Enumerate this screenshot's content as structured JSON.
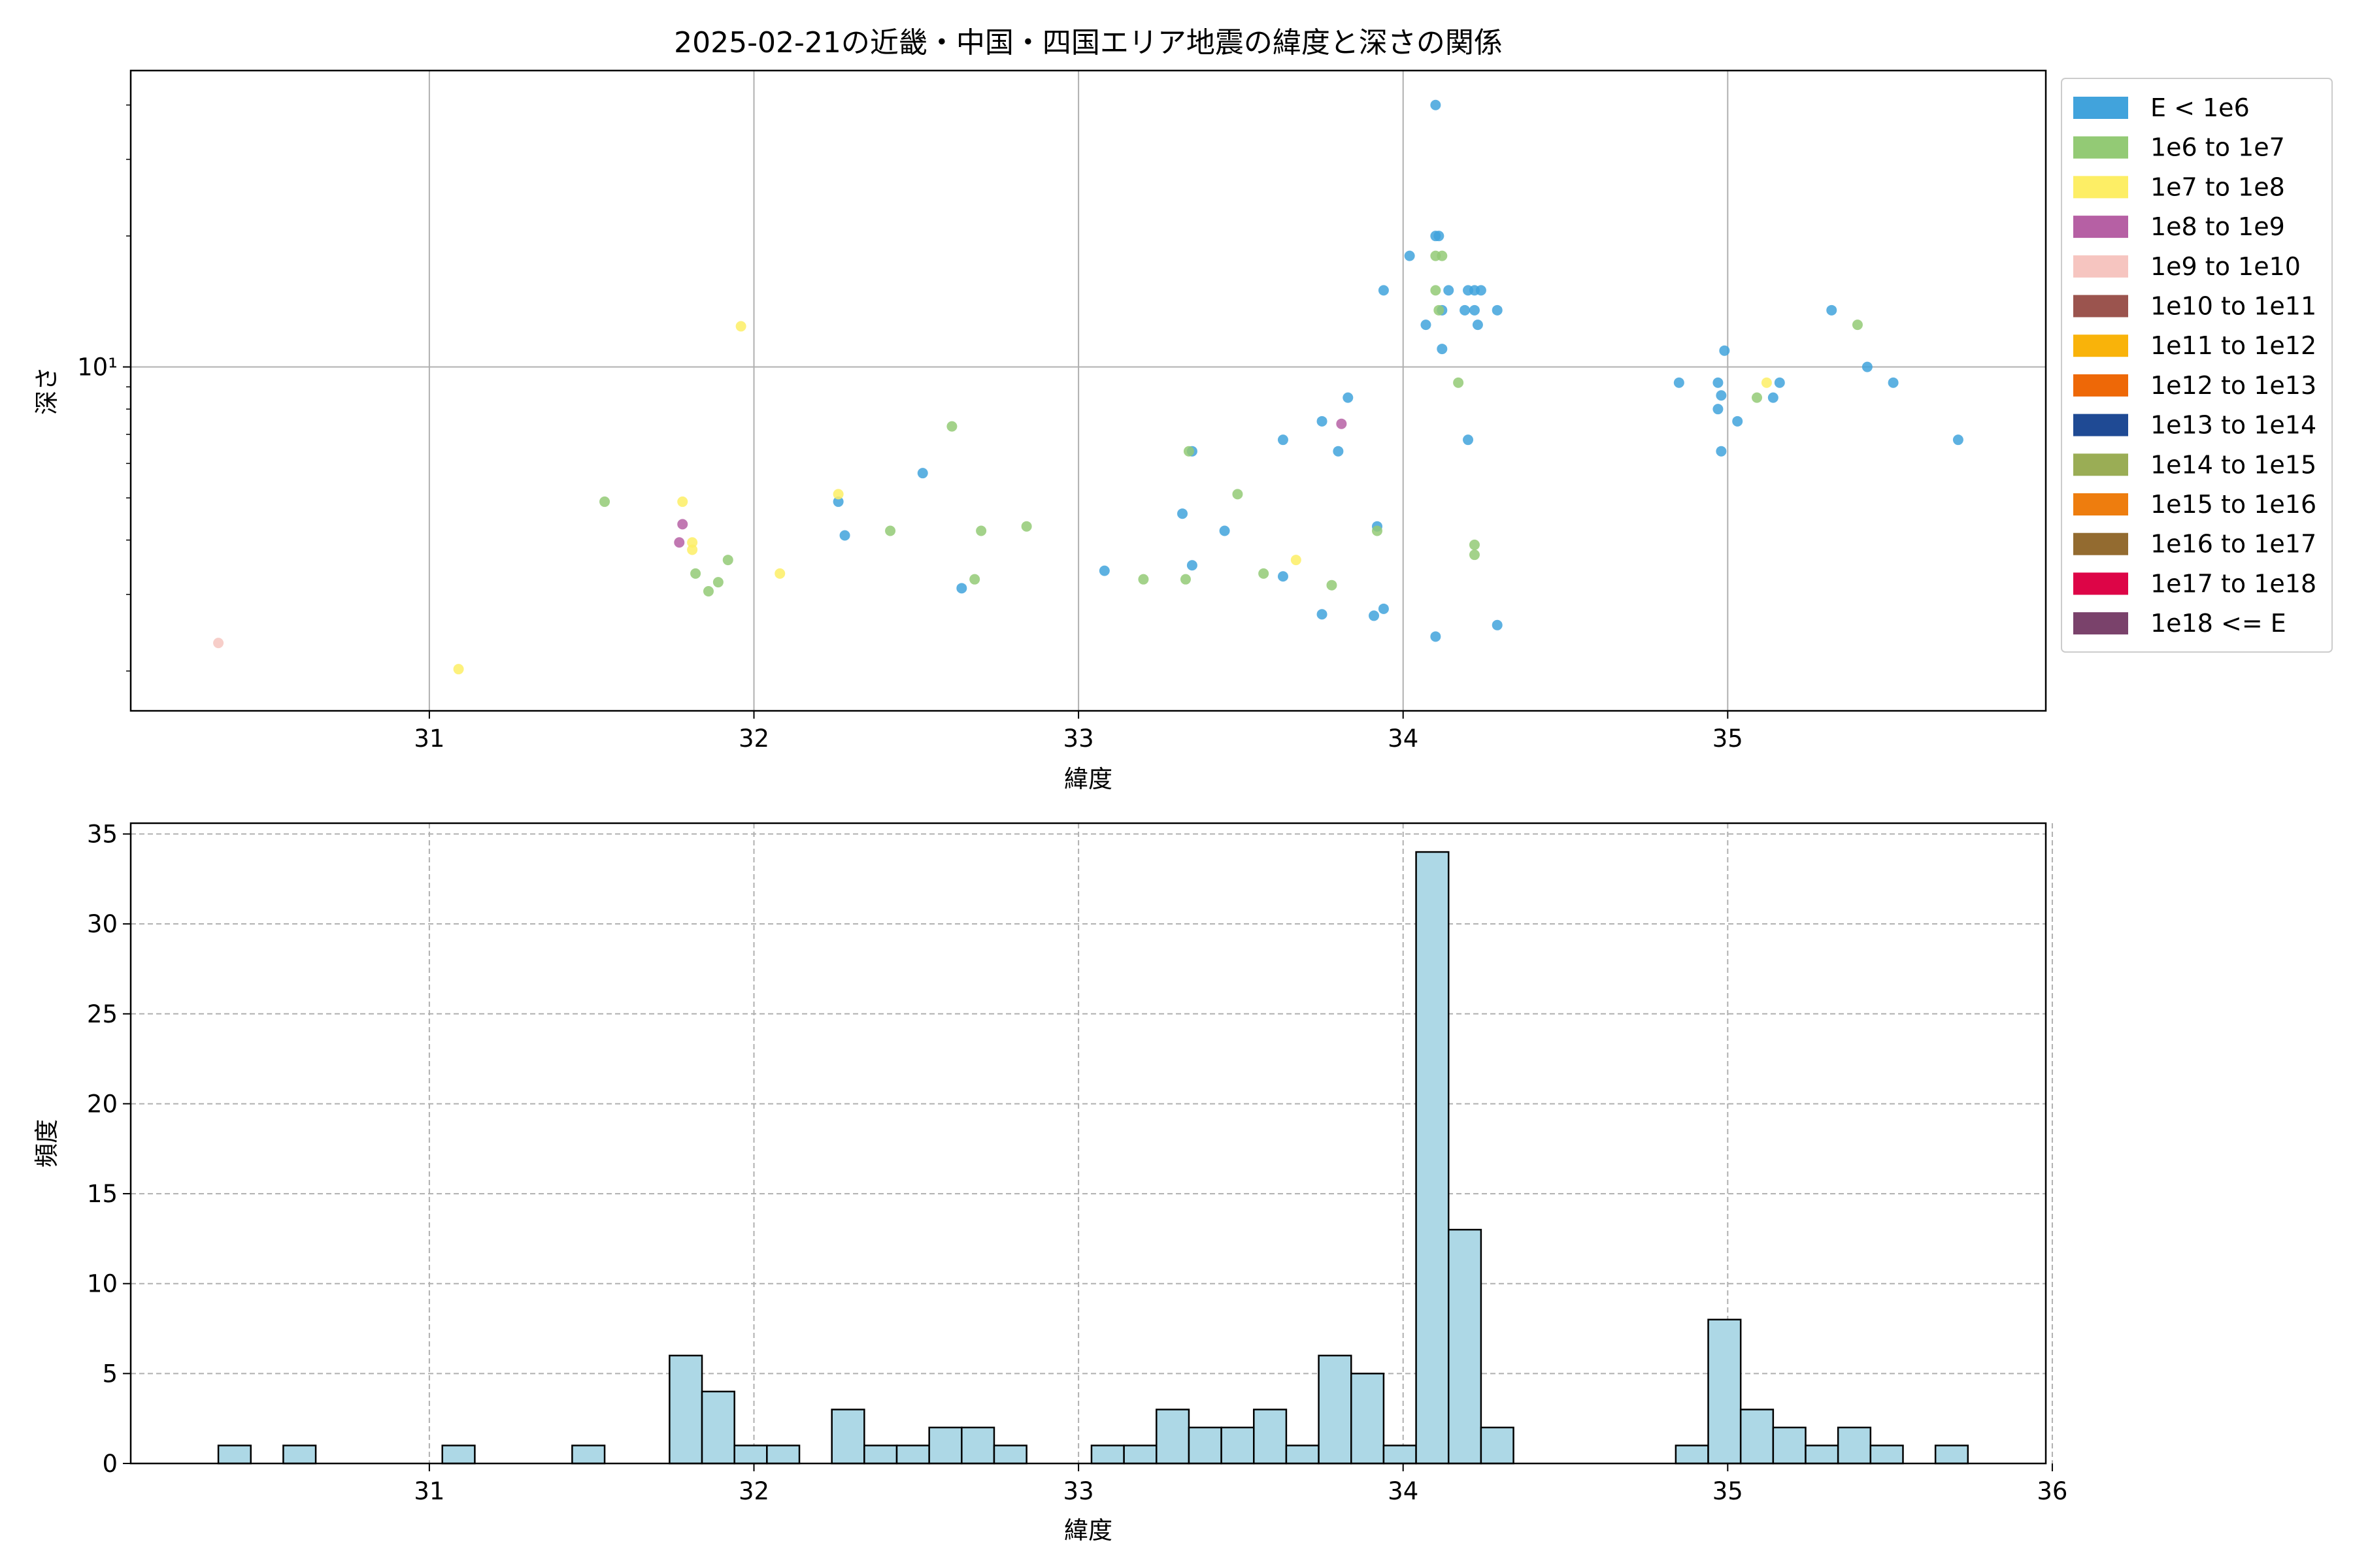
{
  "chart_data": [
    {
      "type": "scatter",
      "title": "2025-02-21の近畿・中国・四国エリア地震の緯度と深さの関係",
      "xlabel": "緯度",
      "ylabel": "深さ",
      "xlim": [
        30.08,
        35.98
      ],
      "ylim": [
        1.62,
        48
      ],
      "yscale": "log",
      "x_ticks": [
        31,
        32,
        33,
        34,
        35
      ],
      "x_tick_labels": [
        "31",
        "32",
        "33",
        "34",
        "35"
      ],
      "y_ticks": [
        10
      ],
      "y_tick_labels": [
        "10¹"
      ],
      "grid": true,
      "legend_position": "outside-right",
      "legend": [
        {
          "label": "E < 1e6",
          "color": "#41a3dc"
        },
        {
          "label": "1e6 to 1e7",
          "color": "#93ca75"
        },
        {
          "label": "1e7 to 1e8",
          "color": "#fdee65"
        },
        {
          "label": "1e8 to 1e9",
          "color": "#b660a4"
        },
        {
          "label": "1e9 to 1e10",
          "color": "#f6c5c0"
        },
        {
          "label": "1e10 to 1e11",
          "color": "#9b544e"
        },
        {
          "label": "1e11 to 1e12",
          "color": "#f9b30a"
        },
        {
          "label": "1e12 to 1e13",
          "color": "#ee6807"
        },
        {
          "label": "1e13 to 1e14",
          "color": "#1f4a94"
        },
        {
          "label": "1e14 to 1e15",
          "color": "#9aad55"
        },
        {
          "label": "1e15 to 1e16",
          "color": "#ee7d0e"
        },
        {
          "label": "1e16 to 1e17",
          "color": "#936b30"
        },
        {
          "label": "1e17 to 1e18",
          "color": "#dd0547"
        },
        {
          "label": "1e18 <= E",
          "color": "#7a426b"
        }
      ],
      "series": [
        {
          "name": "E < 1e6",
          "color": "#41a3dc",
          "points": [
            [
              34.1,
              40
            ],
            [
              34.11,
              20
            ],
            [
              34.1,
              20
            ],
            [
              34.02,
              18
            ],
            [
              33.94,
              15
            ],
            [
              34.14,
              15
            ],
            [
              34.2,
              15
            ],
            [
              34.22,
              15
            ],
            [
              34.24,
              15
            ],
            [
              34.12,
              13.5
            ],
            [
              34.19,
              13.5
            ],
            [
              34.22,
              13.5
            ],
            [
              34.29,
              13.5
            ],
            [
              34.07,
              12.5
            ],
            [
              34.23,
              12.5
            ],
            [
              34.12,
              11
            ],
            [
              35.32,
              13.5
            ],
            [
              34.99,
              10.9
            ],
            [
              34.85,
              9.2
            ],
            [
              34.97,
              9.2
            ],
            [
              35.16,
              9.2
            ],
            [
              35.51,
              9.2
            ],
            [
              34.98,
              8.6
            ],
            [
              35.14,
              8.5
            ],
            [
              35.43,
              10
            ],
            [
              34.97,
              8.0
            ],
            [
              35.03,
              7.5
            ],
            [
              33.83,
              8.5
            ],
            [
              33.75,
              7.5
            ],
            [
              34.2,
              6.8
            ],
            [
              33.63,
              6.8
            ],
            [
              33.8,
              6.4
            ],
            [
              34.98,
              6.4
            ],
            [
              35.71,
              6.8
            ],
            [
              33.35,
              6.4
            ],
            [
              32.52,
              5.7
            ],
            [
              32.26,
              4.9
            ],
            [
              33.32,
              4.6
            ],
            [
              33.45,
              4.2
            ],
            [
              33.92,
              4.3
            ],
            [
              32.28,
              4.1
            ],
            [
              33.08,
              3.4
            ],
            [
              33.35,
              3.5
            ],
            [
              33.63,
              3.3
            ],
            [
              32.64,
              3.1
            ],
            [
              33.75,
              2.7
            ],
            [
              33.91,
              2.68
            ],
            [
              33.94,
              2.78
            ],
            [
              34.29,
              2.55
            ],
            [
              34.1,
              2.4
            ]
          ]
        },
        {
          "name": "1e6 to 1e7",
          "color": "#93ca75",
          "points": [
            [
              34.1,
              18
            ],
            [
              34.12,
              18
            ],
            [
              34.1,
              15
            ],
            [
              34.11,
              13.5
            ],
            [
              35.4,
              12.5
            ],
            [
              34.17,
              9.2
            ],
            [
              35.09,
              8.5
            ],
            [
              32.61,
              7.3
            ],
            [
              33.34,
              6.4
            ],
            [
              33.49,
              5.1
            ],
            [
              31.54,
              4.9
            ],
            [
              32.42,
              4.2
            ],
            [
              32.7,
              4.2
            ],
            [
              32.84,
              4.3
            ],
            [
              33.92,
              4.2
            ],
            [
              34.22,
              3.9
            ],
            [
              34.22,
              3.7
            ],
            [
              31.92,
              3.6
            ],
            [
              31.82,
              3.35
            ],
            [
              31.89,
              3.2
            ],
            [
              31.86,
              3.05
            ],
            [
              32.68,
              3.25
            ],
            [
              33.2,
              3.25
            ],
            [
              33.33,
              3.25
            ],
            [
              33.57,
              3.35
            ],
            [
              33.78,
              3.15
            ]
          ]
        },
        {
          "name": "1e7 to 1e8",
          "color": "#fdee65",
          "points": [
            [
              31.96,
              12.4
            ],
            [
              32.26,
              5.1
            ],
            [
              31.78,
              4.9
            ],
            [
              31.81,
              3.95
            ],
            [
              31.81,
              3.8
            ],
            [
              32.08,
              3.35
            ],
            [
              33.67,
              3.6
            ],
            [
              35.12,
              9.2
            ],
            [
              31.09,
              2.02
            ]
          ]
        },
        {
          "name": "1e8 to 1e9",
          "color": "#b660a4",
          "points": [
            [
              31.78,
              4.35
            ],
            [
              31.77,
              3.95
            ],
            [
              33.81,
              7.4
            ]
          ]
        },
        {
          "name": "1e9 to 1e10",
          "color": "#f6c5c0",
          "points": [
            [
              30.35,
              2.32
            ]
          ]
        }
      ]
    },
    {
      "type": "bar",
      "xlabel": "緯度",
      "ylabel": "頻度",
      "xlim": [
        30.08,
        35.98
      ],
      "ylim": [
        0,
        35.6
      ],
      "x_ticks": [
        31,
        32,
        33,
        34,
        35,
        36
      ],
      "x_tick_labels": [
        "31",
        "32",
        "33",
        "34",
        "35",
        "36"
      ],
      "y_ticks": [
        0,
        5,
        10,
        15,
        20,
        25,
        30,
        35
      ],
      "y_tick_labels": [
        "0",
        "5",
        "10",
        "15",
        "20",
        "25",
        "30",
        "35"
      ],
      "grid": true,
      "bar_color": "#add8e6",
      "edge_color": "#000000",
      "bins": [
        {
          "x0": 30.35,
          "x1": 30.45,
          "count": 1
        },
        {
          "x0": 30.55,
          "x1": 30.65,
          "count": 1
        },
        {
          "x0": 31.04,
          "x1": 31.14,
          "count": 1
        },
        {
          "x0": 31.44,
          "x1": 31.54,
          "count": 1
        },
        {
          "x0": 31.74,
          "x1": 31.84,
          "count": 6
        },
        {
          "x0": 31.84,
          "x1": 31.94,
          "count": 4
        },
        {
          "x0": 31.94,
          "x1": 32.04,
          "count": 1
        },
        {
          "x0": 32.04,
          "x1": 32.14,
          "count": 1
        },
        {
          "x0": 32.24,
          "x1": 32.34,
          "count": 3
        },
        {
          "x0": 32.34,
          "x1": 32.44,
          "count": 1
        },
        {
          "x0": 32.44,
          "x1": 32.54,
          "count": 1
        },
        {
          "x0": 32.54,
          "x1": 32.64,
          "count": 2
        },
        {
          "x0": 32.64,
          "x1": 32.74,
          "count": 2
        },
        {
          "x0": 32.74,
          "x1": 32.84,
          "count": 1
        },
        {
          "x0": 33.04,
          "x1": 33.14,
          "count": 1
        },
        {
          "x0": 33.14,
          "x1": 33.24,
          "count": 1
        },
        {
          "x0": 33.24,
          "x1": 33.34,
          "count": 3
        },
        {
          "x0": 33.34,
          "x1": 33.44,
          "count": 2
        },
        {
          "x0": 33.44,
          "x1": 33.54,
          "count": 2
        },
        {
          "x0": 33.54,
          "x1": 33.64,
          "count": 3
        },
        {
          "x0": 33.64,
          "x1": 33.74,
          "count": 1
        },
        {
          "x0": 33.74,
          "x1": 33.84,
          "count": 6
        },
        {
          "x0": 33.84,
          "x1": 33.94,
          "count": 5
        },
        {
          "x0": 33.94,
          "x1": 34.04,
          "count": 1
        },
        {
          "x0": 34.04,
          "x1": 34.14,
          "count": 34
        },
        {
          "x0": 34.14,
          "x1": 34.24,
          "count": 13
        },
        {
          "x0": 34.24,
          "x1": 34.34,
          "count": 2
        },
        {
          "x0": 34.84,
          "x1": 34.94,
          "count": 1
        },
        {
          "x0": 34.94,
          "x1": 35.04,
          "count": 8
        },
        {
          "x0": 35.04,
          "x1": 35.14,
          "count": 3
        },
        {
          "x0": 35.14,
          "x1": 35.24,
          "count": 2
        },
        {
          "x0": 35.24,
          "x1": 35.34,
          "count": 1
        },
        {
          "x0": 35.34,
          "x1": 35.44,
          "count": 2
        },
        {
          "x0": 35.44,
          "x1": 35.54,
          "count": 1
        },
        {
          "x0": 35.64,
          "x1": 35.74,
          "count": 1
        }
      ]
    }
  ]
}
